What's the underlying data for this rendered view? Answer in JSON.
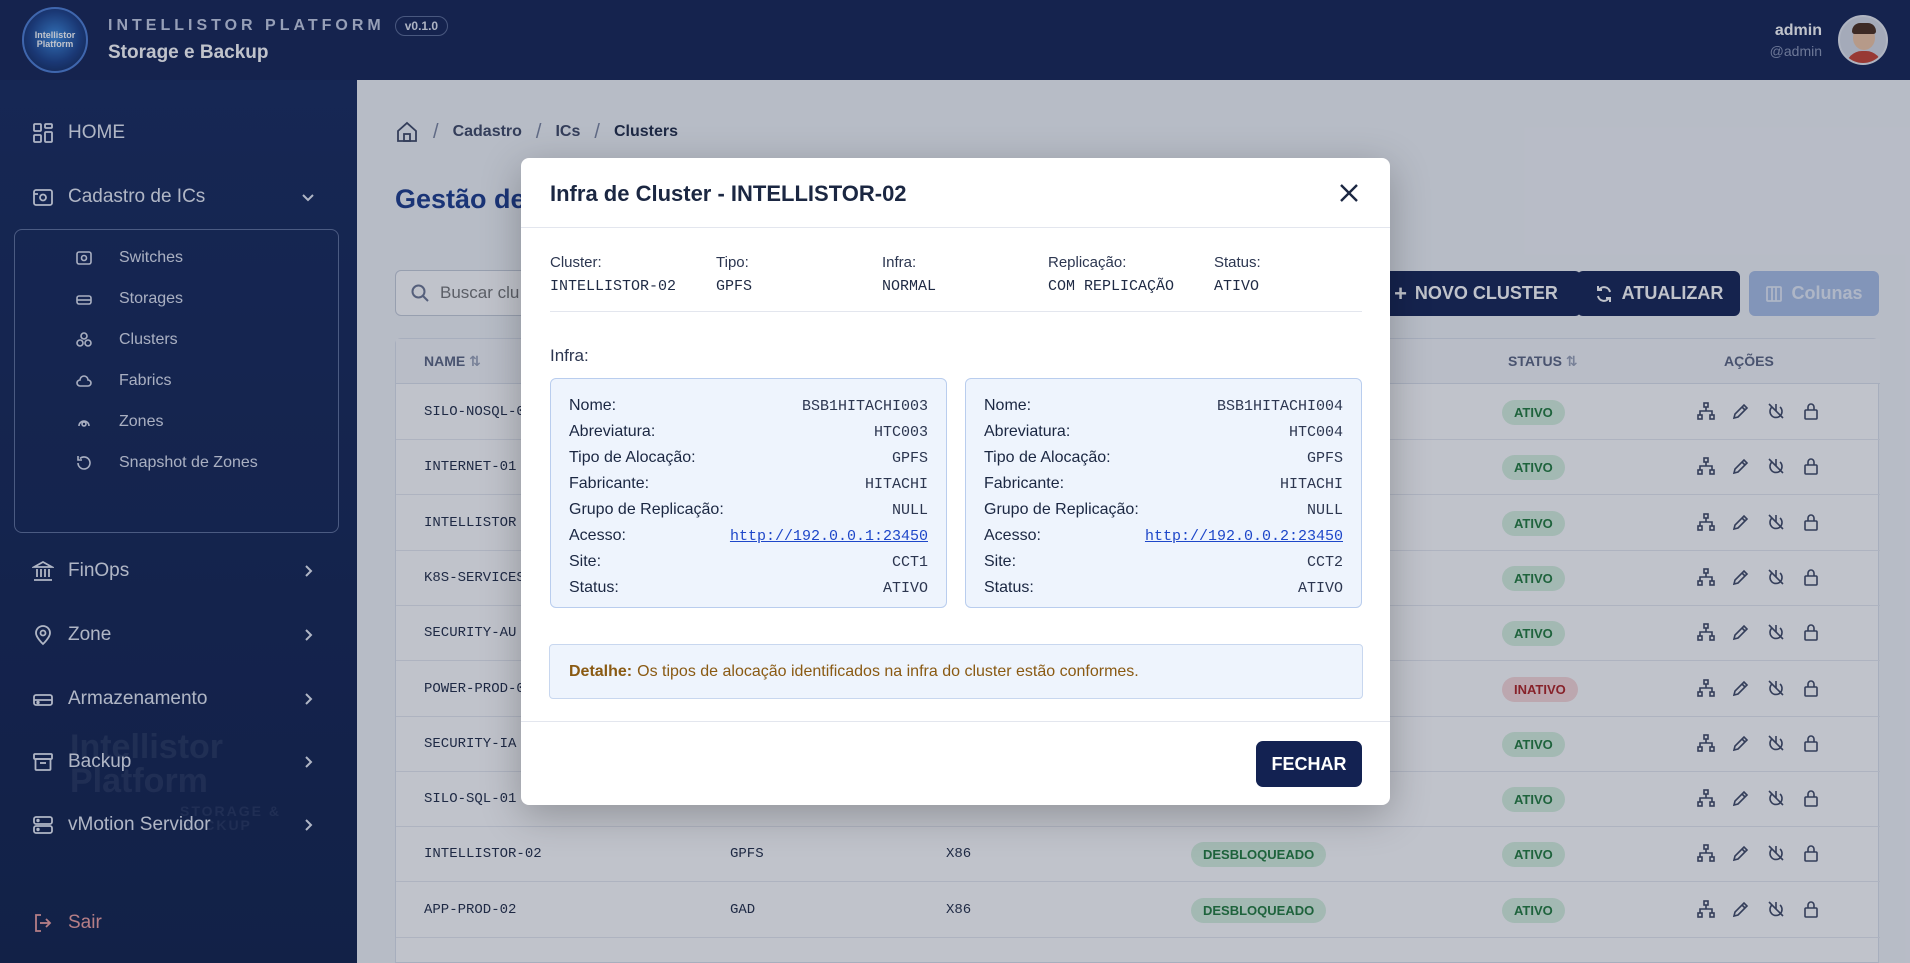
{
  "header": {
    "logo_text": "Intellistor Platform",
    "brand": "INTELLISTOR PLATFORM",
    "version": "v0.1.0",
    "subtitle": "Storage e Backup",
    "user_name": "admin",
    "user_handle": "@admin"
  },
  "sidebar": {
    "home": "HOME",
    "cadastro": "Cadastro de ICs",
    "sub": [
      "Switches",
      "Storages",
      "Clusters",
      "Fabrics",
      "Zones",
      "Snapshot de Zones"
    ],
    "finops": "FinOps",
    "zone": "Zone",
    "armazenamento": "Armazenamento",
    "backup": "Backup",
    "vmotion": "vMotion Servidor",
    "logout": "Sair",
    "watermark_title": "Intellistor Platform",
    "watermark_sub": "STORAGE & BACKUP"
  },
  "main": {
    "breadcrumb": [
      "Cadastro",
      "ICs",
      "Clusters"
    ],
    "title": "Gestão de",
    "search_placeholder": "Buscar clu",
    "btn_new": "NOVO CLUSTER",
    "btn_refresh": "ATUALIZAR",
    "btn_cols": "Colunas",
    "columns": {
      "name": "NAME",
      "status": "STATUS",
      "actions": "AÇÕES"
    },
    "rows": [
      {
        "name": "SILO-NOSQL-0",
        "tipo": "",
        "arq": "",
        "lock": "",
        "status": "ATIVO"
      },
      {
        "name": "INTERNET-01",
        "tipo": "",
        "arq": "",
        "lock": "",
        "status": "ATIVO"
      },
      {
        "name": "INTELLISTOR",
        "tipo": "",
        "arq": "",
        "lock": "",
        "status": "ATIVO"
      },
      {
        "name": "K8S-SERVICES",
        "tipo": "",
        "arq": "",
        "lock": "",
        "status": "ATIVO"
      },
      {
        "name": "SECURITY-AU",
        "tipo": "",
        "arq": "",
        "lock": "",
        "status": "ATIVO"
      },
      {
        "name": "POWER-PROD-0",
        "tipo": "",
        "arq": "",
        "lock": "",
        "status": "INATIVO"
      },
      {
        "name": "SECURITY-IA",
        "tipo": "",
        "arq": "",
        "lock": "",
        "status": "ATIVO"
      },
      {
        "name": "SILO-SQL-01",
        "tipo": "",
        "arq": "",
        "lock": "",
        "status": "ATIVO"
      },
      {
        "name": "INTELLISTOR-02",
        "tipo": "GPFS",
        "arq": "X86",
        "lock": "DESBLOQUEADO",
        "status": "ATIVO"
      },
      {
        "name": "APP-PROD-02",
        "tipo": "GAD",
        "arq": "X86",
        "lock": "DESBLOQUEADO",
        "status": "ATIVO"
      }
    ]
  },
  "modal": {
    "title": "Infra de Cluster - INTELLISTOR-02",
    "summary": {
      "cluster_label": "Cluster:",
      "cluster": "INTELLISTOR-02",
      "tipo_label": "Tipo:",
      "tipo": "GPFS",
      "infra_label": "Infra:",
      "infra": "NORMAL",
      "replicacao_label": "Replicação:",
      "replicacao": "COM REPLICAÇÃO",
      "status_label": "Status:",
      "status": "ATIVO"
    },
    "infra_title": "Infra:",
    "labels": {
      "nome": "Nome:",
      "abreviatura": "Abreviatura:",
      "tipo_alocacao": "Tipo de Alocação:",
      "fabricante": "Fabricante:",
      "grupo_replicacao": "Grupo de Replicação:",
      "acesso": "Acesso:",
      "site": "Site:",
      "status": "Status:"
    },
    "cards": [
      {
        "nome": "BSB1HITACHI003",
        "abreviatura": "HTC003",
        "tipo_alocacao": "GPFS",
        "fabricante": "HITACHI",
        "grupo_replicacao": "NULL",
        "acesso": "http://192.0.0.1:23450",
        "site": "CCT1",
        "status": "ATIVO"
      },
      {
        "nome": "BSB1HITACHI004",
        "abreviatura": "HTC004",
        "tipo_alocacao": "GPFS",
        "fabricante": "HITACHI",
        "grupo_replicacao": "NULL",
        "acesso": "http://192.0.0.2:23450",
        "site": "CCT2",
        "status": "ATIVO"
      }
    ],
    "detail_label": "Detalhe:",
    "detail_text": "Os tipos de alocação identificados na infra do cluster estão conformes.",
    "close_button": "FECHAR"
  },
  "colors": {
    "navy": "#132252",
    "active_green": "#1f7a3a",
    "inactive_red": "#b01f1f",
    "link_blue": "#1e47c9"
  }
}
